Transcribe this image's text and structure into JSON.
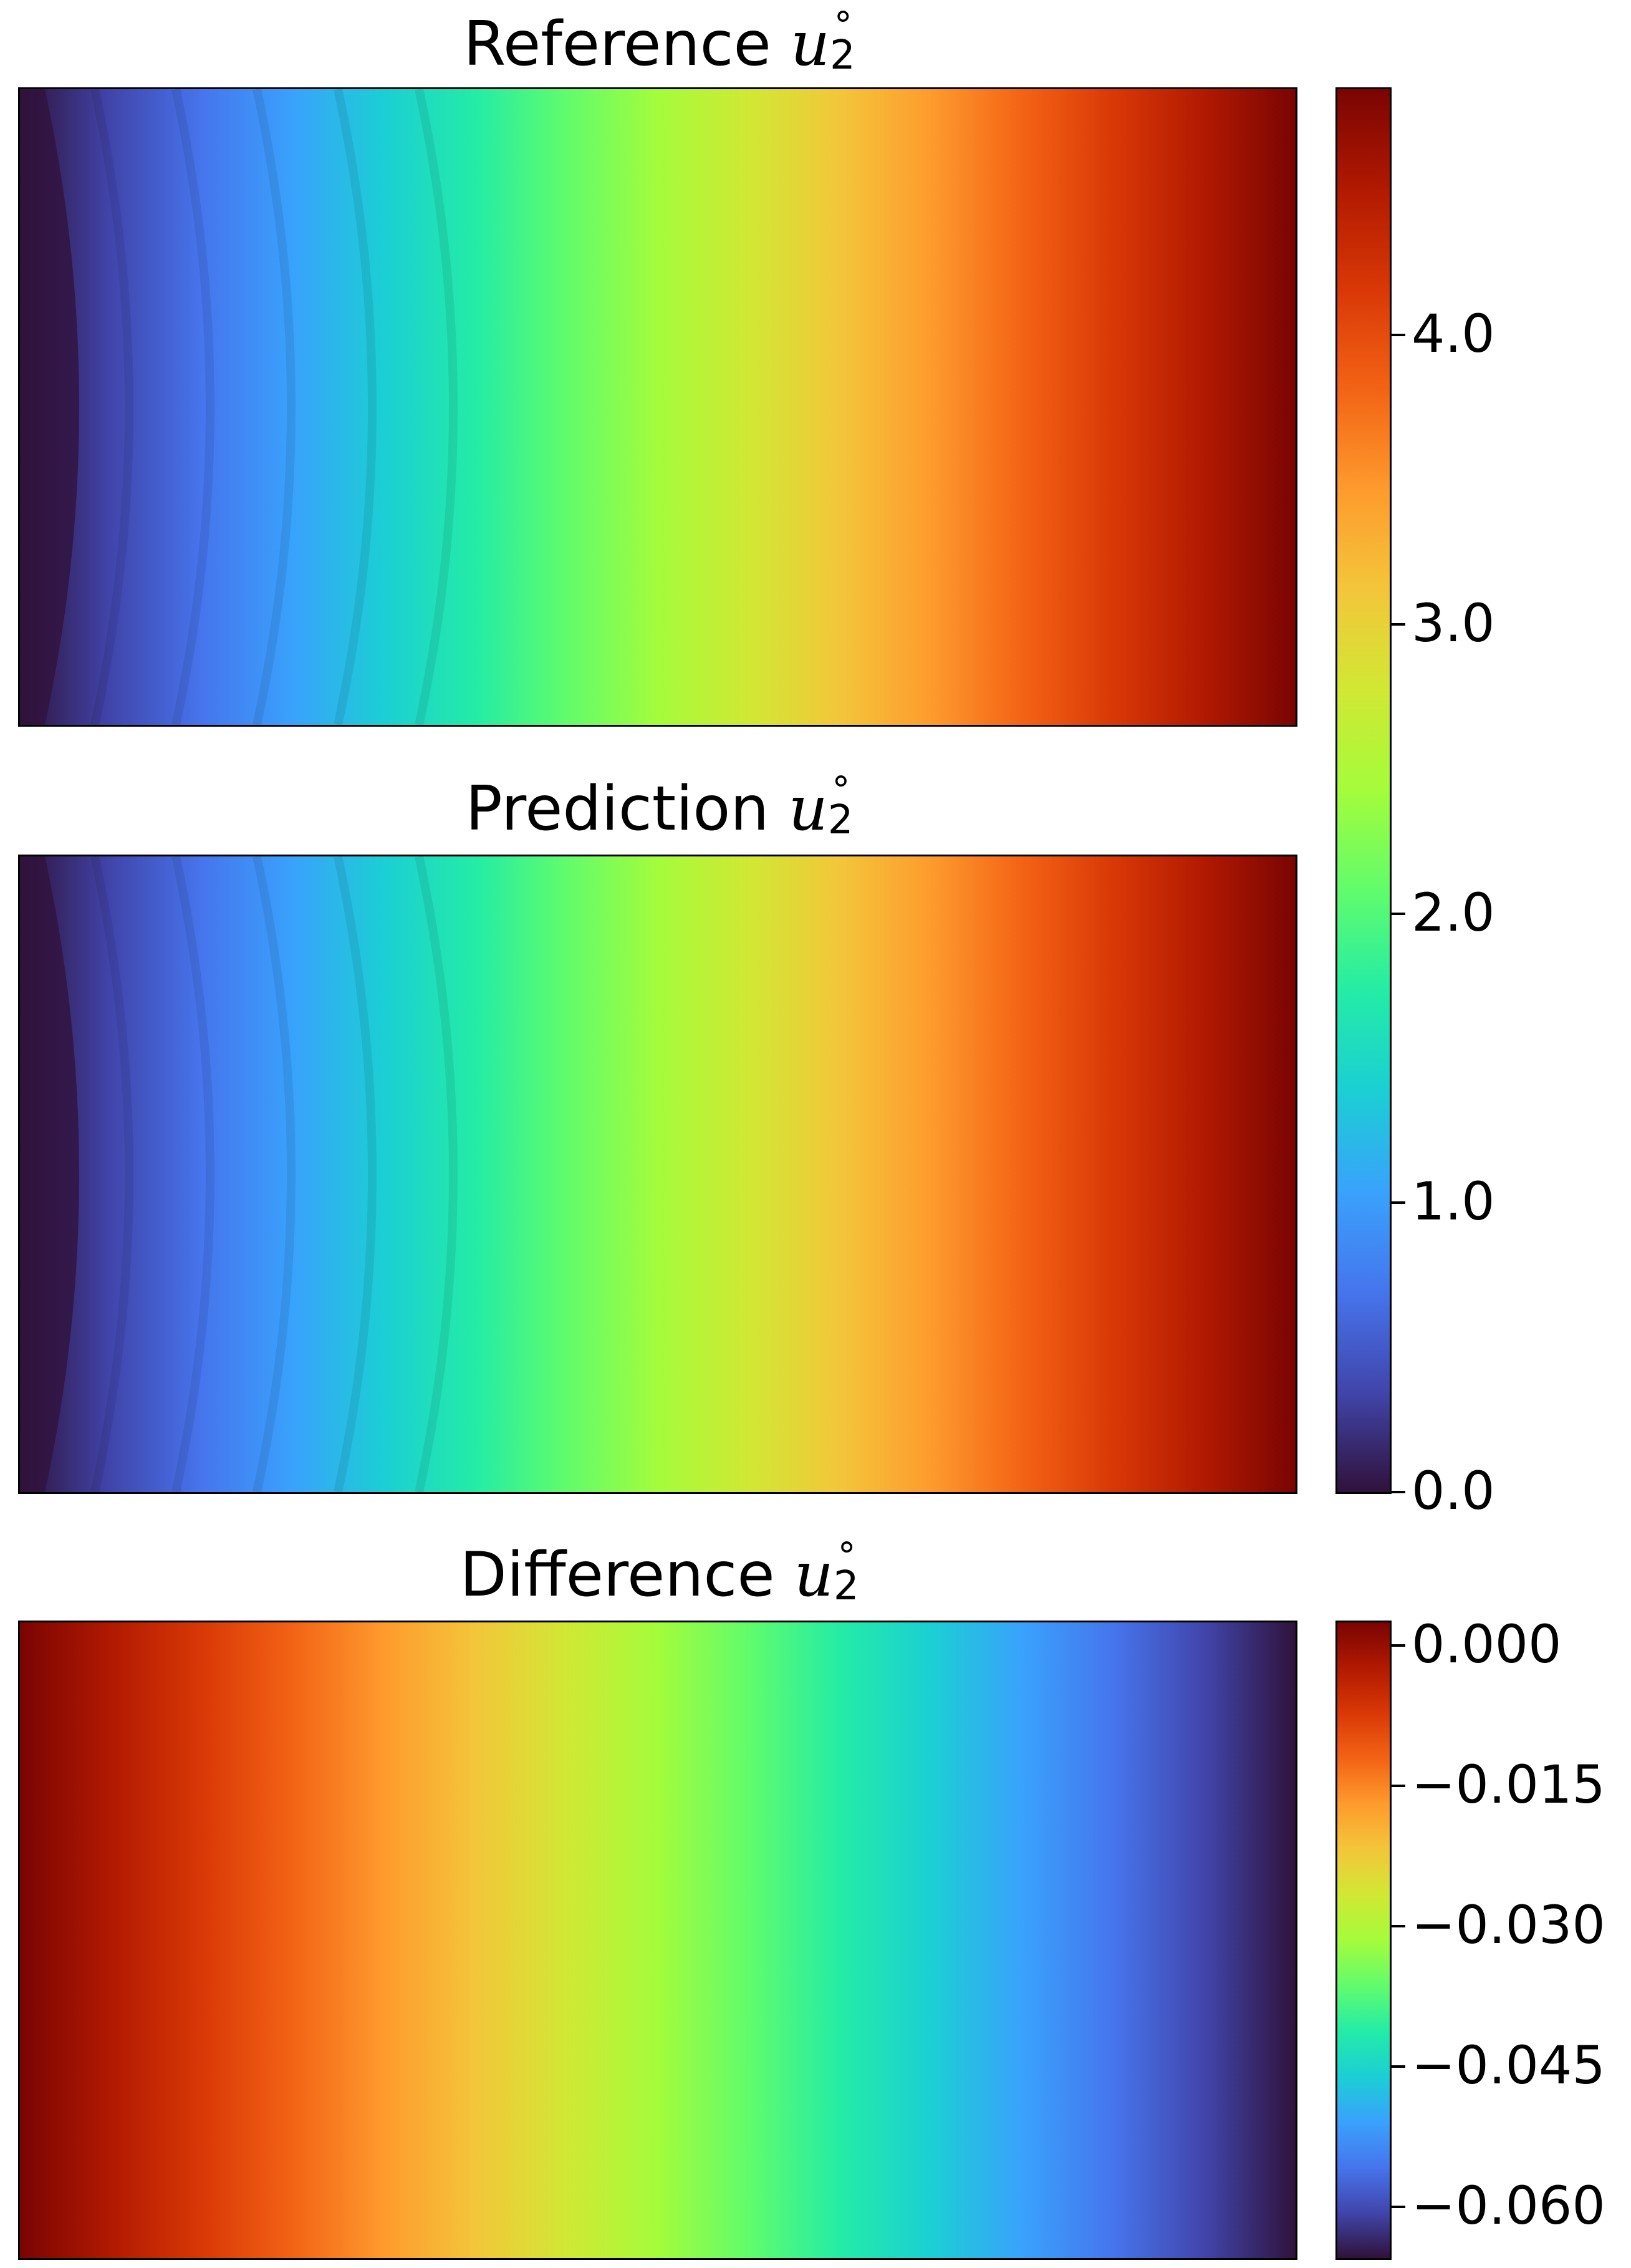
{
  "figure": {
    "panels": [
      {
        "id": "reference",
        "title_word": "Reference",
        "symbol": "u",
        "subscript": "2",
        "superscript": "°"
      },
      {
        "id": "prediction",
        "title_word": "Prediction",
        "symbol": "u",
        "subscript": "2",
        "superscript": "°"
      },
      {
        "id": "difference",
        "title_word": "Difference",
        "symbol": "u",
        "subscript": "2",
        "superscript": "°"
      }
    ]
  },
  "colormap": {
    "name": "turbo",
    "stops": [
      "#30123b",
      "#4145ab",
      "#4675ed",
      "#39a2fc",
      "#1bcfd4",
      "#24eca6",
      "#61fc6c",
      "#a4fc3b",
      "#d1e834",
      "#f3c63a",
      "#fe9b2d",
      "#f36315",
      "#d93806",
      "#b11901",
      "#7a0403"
    ]
  },
  "chart_data": [
    {
      "type": "heatmap",
      "title": "Reference u2°",
      "field": "u2 reference",
      "value_range": [
        0.0,
        4.85
      ],
      "colorbar_ticks": [
        "0.0",
        "1.0",
        "2.0",
        "3.0",
        "4.0"
      ],
      "colorbar_tick_values": [
        0.0,
        1.0,
        2.0,
        3.0,
        4.0
      ],
      "shared_colorbar": true,
      "grid": false
    },
    {
      "type": "heatmap",
      "title": "Prediction u2°",
      "field": "u2 prediction",
      "value_range": [
        0.0,
        4.85
      ],
      "shared_colorbar": true,
      "grid": false
    },
    {
      "type": "heatmap",
      "title": "Difference u2°",
      "field": "u2 difference",
      "value_range": [
        -0.0655,
        0.0025
      ],
      "colorbar_ticks": [
        "0.000",
        "−0.015",
        "−0.030",
        "−0.045",
        "−0.060"
      ],
      "colorbar_tick_values": [
        0.0,
        -0.015,
        -0.03,
        -0.045,
        -0.06
      ],
      "grid": false
    }
  ]
}
